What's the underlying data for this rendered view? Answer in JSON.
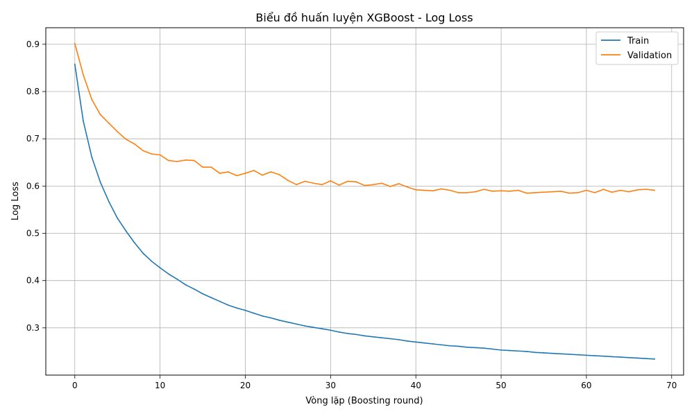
{
  "chart_data": {
    "type": "line",
    "title": "Biểu đồ huấn luyện XGBoost - Log Loss",
    "xlabel": "Vòng lặp (Boosting round)",
    "ylabel": "Log Loss",
    "xlim": [
      -3.4,
      71.4
    ],
    "ylim": [
      0.2,
      0.935
    ],
    "xticks": [
      0,
      10,
      20,
      30,
      40,
      50,
      60,
      70
    ],
    "yticks": [
      0.3,
      0.4,
      0.5,
      0.6,
      0.7,
      0.8,
      0.9
    ],
    "grid": true,
    "legend_position": "top-right",
    "x": [
      0,
      1,
      2,
      3,
      4,
      5,
      6,
      7,
      8,
      9,
      10,
      11,
      12,
      13,
      14,
      15,
      16,
      17,
      18,
      19,
      20,
      21,
      22,
      23,
      24,
      25,
      26,
      27,
      28,
      29,
      30,
      31,
      32,
      33,
      34,
      35,
      36,
      37,
      38,
      39,
      40,
      41,
      42,
      43,
      44,
      45,
      46,
      47,
      48,
      49,
      50,
      51,
      52,
      53,
      54,
      55,
      56,
      57,
      58,
      59,
      60,
      61,
      62,
      63,
      64,
      65,
      66,
      67,
      68
    ],
    "series": [
      {
        "name": "Train",
        "color": "#1f77b4",
        "values": [
          0.858,
          0.737,
          0.661,
          0.608,
          0.567,
          0.532,
          0.505,
          0.48,
          0.458,
          0.441,
          0.427,
          0.414,
          0.403,
          0.391,
          0.382,
          0.372,
          0.364,
          0.356,
          0.348,
          0.342,
          0.337,
          0.331,
          0.325,
          0.321,
          0.316,
          0.312,
          0.308,
          0.304,
          0.301,
          0.298,
          0.295,
          0.291,
          0.288,
          0.286,
          0.283,
          0.281,
          0.279,
          0.277,
          0.275,
          0.272,
          0.27,
          0.268,
          0.266,
          0.264,
          0.262,
          0.261,
          0.259,
          0.258,
          0.257,
          0.255,
          0.253,
          0.252,
          0.251,
          0.25,
          0.248,
          0.247,
          0.246,
          0.245,
          0.244,
          0.243,
          0.242,
          0.241,
          0.24,
          0.239,
          0.238,
          0.237,
          0.236,
          0.235,
          0.234
        ]
      },
      {
        "name": "Validation",
        "color": "#ff7f0e",
        "values": [
          0.902,
          0.835,
          0.783,
          0.751,
          0.733,
          0.715,
          0.699,
          0.689,
          0.675,
          0.668,
          0.666,
          0.654,
          0.652,
          0.655,
          0.654,
          0.64,
          0.64,
          0.627,
          0.63,
          0.622,
          0.627,
          0.633,
          0.623,
          0.63,
          0.624,
          0.612,
          0.603,
          0.61,
          0.606,
          0.603,
          0.611,
          0.602,
          0.61,
          0.609,
          0.601,
          0.603,
          0.606,
          0.599,
          0.605,
          0.598,
          0.592,
          0.591,
          0.59,
          0.594,
          0.591,
          0.586,
          0.586,
          0.588,
          0.593,
          0.589,
          0.59,
          0.589,
          0.591,
          0.585,
          0.586,
          0.587,
          0.588,
          0.589,
          0.585,
          0.586,
          0.591,
          0.586,
          0.593,
          0.587,
          0.591,
          0.588,
          0.592,
          0.593,
          0.591
        ]
      }
    ]
  }
}
